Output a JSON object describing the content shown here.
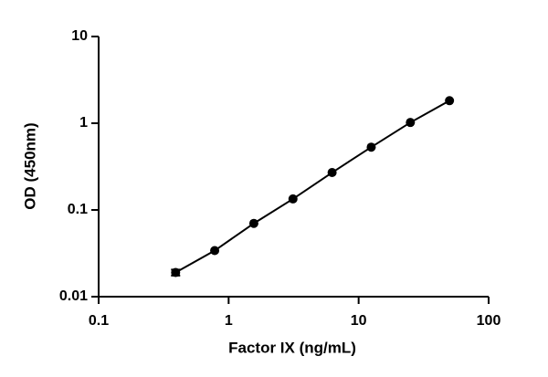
{
  "chart_data": {
    "type": "scatter",
    "xlabel": "Factor IX (ng/mL)",
    "ylabel": "OD (450nm)",
    "x": [
      0.391,
      0.781,
      1.5625,
      3.125,
      6.25,
      12.5,
      25,
      50
    ],
    "series": [
      {
        "color": "#000000",
        "values": [
          0.019,
          0.034,
          0.07,
          0.134,
          0.27,
          0.53,
          1.02,
          1.82
        ],
        "errors": [
          0.0015,
          null,
          null,
          null,
          null,
          null,
          null,
          null
        ]
      }
    ],
    "xlog": true,
    "ylog": true,
    "fit_line": true,
    "xlim": [
      0.1,
      100
    ],
    "ylim": [
      0.01,
      10
    ],
    "xticks": [
      0.1,
      1,
      10,
      100
    ],
    "yticks": [
      0.01,
      0.1,
      1,
      10
    ]
  }
}
